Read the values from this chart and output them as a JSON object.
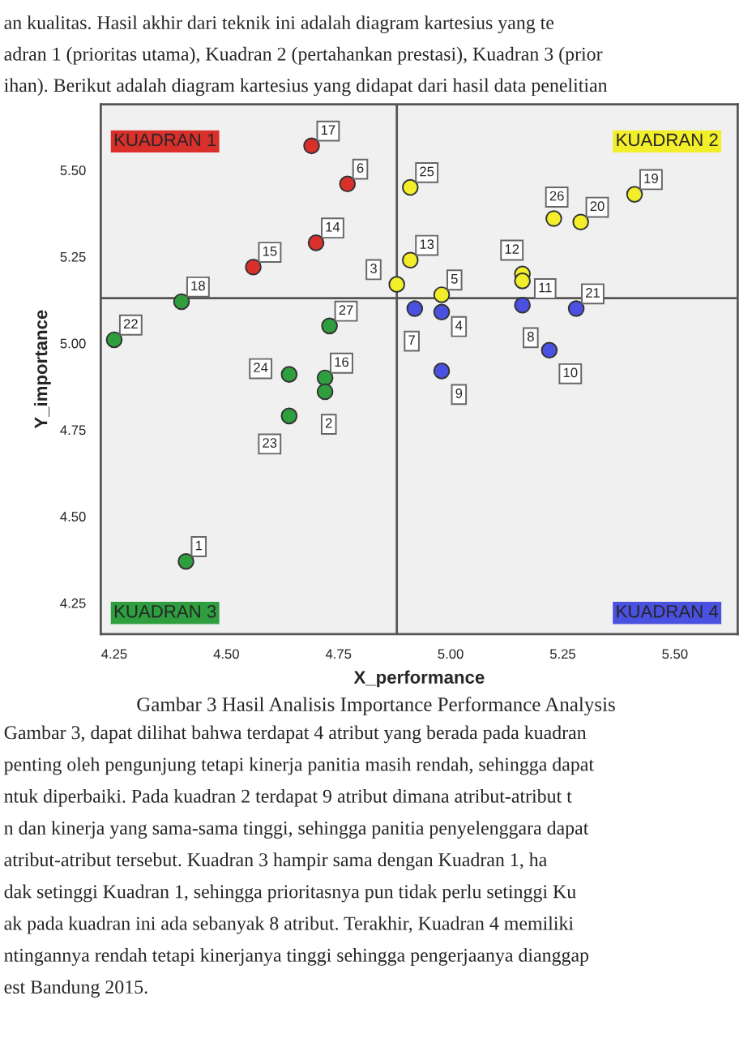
{
  "chart_data": {
    "type": "scatter",
    "xlabel": "X_performance",
    "ylabel": "Y_importance",
    "xlim": [
      4.22,
      5.64
    ],
    "ylim": [
      4.16,
      5.69
    ],
    "xticks": [
      {
        "value": 4.25,
        "label": "4.25"
      },
      {
        "value": 4.5,
        "label": "4.50"
      },
      {
        "value": 4.75,
        "label": "4.75"
      },
      {
        "value": 5.0,
        "label": "5.00"
      },
      {
        "value": 5.25,
        "label": "5.25"
      },
      {
        "value": 5.5,
        "label": "5.50"
      }
    ],
    "yticks": [
      {
        "value": 4.25,
        "label": "4.25"
      },
      {
        "value": 4.5,
        "label": "4.50"
      },
      {
        "value": 4.75,
        "label": "4.75"
      },
      {
        "value": 5.0,
        "label": "5.00"
      },
      {
        "value": 5.25,
        "label": "5.25"
      },
      {
        "value": 5.5,
        "label": "5.50"
      }
    ],
    "marker": "circle",
    "grid": false,
    "legend": false,
    "ref_lines": [
      {
        "axis": "x",
        "value": 4.88,
        "label": null
      },
      {
        "axis": "y",
        "value": 5.13,
        "label": null
      }
    ],
    "series": [
      {
        "color": "#d9302c",
        "x": [
          4.69,
          4.77,
          4.7,
          4.56
        ],
        "values": [
          5.57,
          5.46,
          5.29,
          5.22
        ]
      },
      {
        "color": "#f2ee2a",
        "x": [
          4.88,
          4.91,
          4.91,
          4.98,
          5.16,
          5.16,
          5.23,
          5.29,
          5.41
        ],
        "values": [
          5.17,
          5.45,
          5.24,
          5.14,
          5.2,
          5.18,
          5.36,
          5.35,
          5.43
        ]
      },
      {
        "color": "#2e9e3e",
        "x": [
          4.4,
          4.25,
          4.73,
          4.64,
          4.72,
          4.72,
          4.64,
          4.41
        ],
        "values": [
          5.12,
          5.01,
          5.05,
          4.91,
          4.9,
          4.86,
          4.79,
          4.37
        ]
      },
      {
        "color": "#4a50e0",
        "x": [
          4.92,
          4.98,
          4.98,
          5.16,
          5.28,
          5.22
        ],
        "values": [
          5.1,
          5.09,
          4.92,
          5.11,
          5.1,
          4.98
        ]
      }
    ],
    "annotations": [
      {
        "text": "17",
        "x": 4.69,
        "y": 5.57
      },
      {
        "text": "6",
        "x": 4.77,
        "y": 5.46
      },
      {
        "text": "14",
        "x": 4.7,
        "y": 5.29
      },
      {
        "text": "15",
        "x": 4.56,
        "y": 5.22
      },
      {
        "text": "3",
        "x": 4.88,
        "y": 5.17
      },
      {
        "text": "25",
        "x": 4.91,
        "y": 5.45
      },
      {
        "text": "13",
        "x": 4.91,
        "y": 5.24
      },
      {
        "text": "5",
        "x": 4.98,
        "y": 5.14
      },
      {
        "text": "12",
        "x": 5.16,
        "y": 5.2
      },
      {
        "text": "11",
        "x": 5.16,
        "y": 5.18
      },
      {
        "text": "26",
        "x": 5.23,
        "y": 5.36
      },
      {
        "text": "20",
        "x": 5.29,
        "y": 5.35
      },
      {
        "text": "19",
        "x": 5.41,
        "y": 5.43
      },
      {
        "text": "18",
        "x": 4.4,
        "y": 5.12
      },
      {
        "text": "22",
        "x": 4.25,
        "y": 5.01
      },
      {
        "text": "27",
        "x": 4.73,
        "y": 5.05
      },
      {
        "text": "24",
        "x": 4.64,
        "y": 4.91
      },
      {
        "text": "16",
        "x": 4.72,
        "y": 4.9
      },
      {
        "text": "2",
        "x": 4.72,
        "y": 4.86
      },
      {
        "text": "23",
        "x": 4.64,
        "y": 4.79
      },
      {
        "text": "1",
        "x": 4.41,
        "y": 4.37
      },
      {
        "text": "7",
        "x": 4.92,
        "y": 5.1
      },
      {
        "text": "4",
        "x": 4.98,
        "y": 5.09
      },
      {
        "text": "9",
        "x": 4.98,
        "y": 4.92
      },
      {
        "text": "8",
        "x": 5.16,
        "y": 5.11
      },
      {
        "text": "21",
        "x": 5.28,
        "y": 5.1
      },
      {
        "text": "10",
        "x": 5.22,
        "y": 4.98
      },
      "KUADRAN 1",
      "KUADRAN 2",
      "KUADRAN 3",
      "KUADRAN 4",
      "an kualitas. Hasil akhir dari teknik ini adalah diagram kartesius yang te",
      "adran 1 (prioritas utama), Kuadran 2 (pertahankan prestasi), Kuadran 3 (prior",
      "ihan). Berikut adalah diagram kartesius yang didapat dari hasil data penelitian",
      "Gambar 3 Hasil Analisis Importance Performance Analysis",
      "Gambar 3, dapat dilihat bahwa terdapat 4 atribut yang berada pada kuadran",
      "penting oleh pengunjung tetapi kinerja panitia masih rendah, sehingga dapat",
      "ntuk diperbaiki. Pada kuadran 2 terdapat 9 atribut dimana atribut-atribut t",
      "n dan kinerja yang sama-sama tinggi, sehingga panitia penyelenggara dapat",
      "atribut-atribut tersebut. Kuadran 3 hampir sama dengan Kuadran 1, ha",
      "dak setinggi Kuadran 1, sehingga prioritasnya pun tidak perlu setinggi Ku",
      "ak pada kuadran ini ada sebanyak 8 atribut. Terakhir, Kuadran 4 memiliki",
      "ntingannya rendah tetapi kinerjanya tinggi sehingga pengerjaanya dianggap",
      "est Bandung 2015."
    ]
  }
}
